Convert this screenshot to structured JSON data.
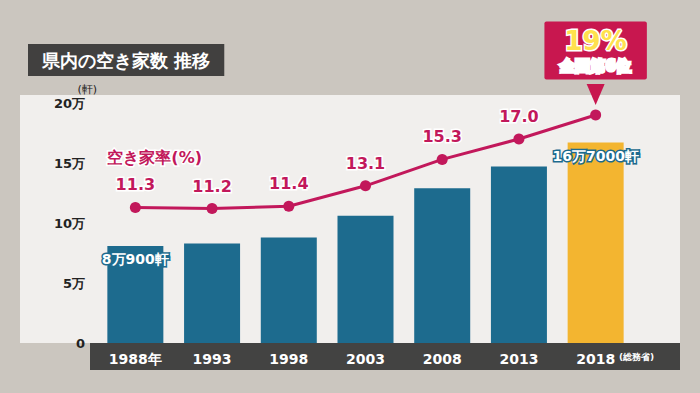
{
  "chart_data": {
    "type": "bar",
    "title": "県内の空き家数 推移",
    "y_label": "(軒)",
    "note": "全国第6位",
    "source": "(総務省)",
    "categories": [
      "1988年",
      "1993",
      "1998",
      "2003",
      "2008",
      "2013",
      "2018"
    ],
    "ylim": [
      0,
      200000
    ],
    "yticks": [
      0,
      {
        "value": 50000,
        "label": "5万"
      },
      {
        "value": 100000,
        "label": "10万"
      },
      {
        "value": 150000,
        "label": "15万"
      },
      {
        "value": 200000,
        "label": "20万"
      }
    ],
    "y2lim": [
      0,
      20
    ],
    "grid": false,
    "data_labels": true,
    "series": [
      {
        "type": "bar",
        "colors": [
          "#1d6b8e",
          "#1d6b8e",
          "#1d6b8e",
          "#1d6b8e",
          "#1d6b8e",
          "#1d6b8e",
          "#f3b530"
        ],
        "values": [
          80900,
          83000,
          88000,
          106000,
          129000,
          147000,
          167000
        ],
        "value_labels": [
          "8万900軒",
          null,
          null,
          null,
          null,
          null,
          "16万7000軒"
        ]
      },
      {
        "name": "空き家率(%)",
        "type": "line",
        "axis": "y2",
        "color": "#c2185b",
        "marker": "circle",
        "values": [
          11.3,
          11.2,
          11.4,
          13.1,
          15.3,
          17,
          19
        ],
        "value_labels": [
          "11.3",
          "11.2",
          "11.4",
          "13.1",
          "15.3",
          "17.0",
          "19%"
        ]
      }
    ]
  }
}
